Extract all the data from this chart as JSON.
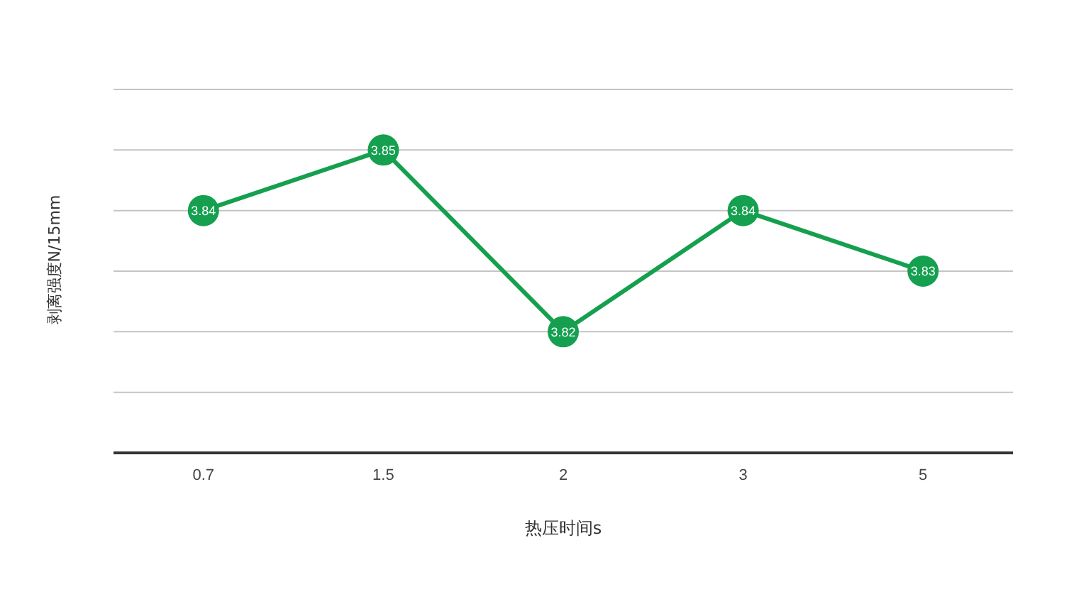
{
  "chart_data": {
    "type": "line",
    "xlabel": "热压时间s",
    "ylabel": "剥离强度N/15mm",
    "categories": [
      "0.7",
      "1.5",
      "2",
      "3",
      "5"
    ],
    "series": [
      {
        "color": "#14a04f",
        "values": [
          3.84,
          3.85,
          3.82,
          3.84,
          3.83
        ]
      }
    ],
    "ylim": [
      3.8,
      3.86
    ],
    "yticks": [
      {
        "value": 3.81,
        "label": null
      },
      {
        "value": 3.82,
        "label": null
      },
      {
        "value": 3.83,
        "label": null
      },
      {
        "value": 3.84,
        "label": null
      },
      {
        "value": 3.85,
        "label": null
      },
      {
        "value": 3.86,
        "label": null
      }
    ],
    "tick_labels": "x",
    "grid": "y",
    "marker": "circle",
    "line_style": "solid",
    "data_labels": true
  }
}
